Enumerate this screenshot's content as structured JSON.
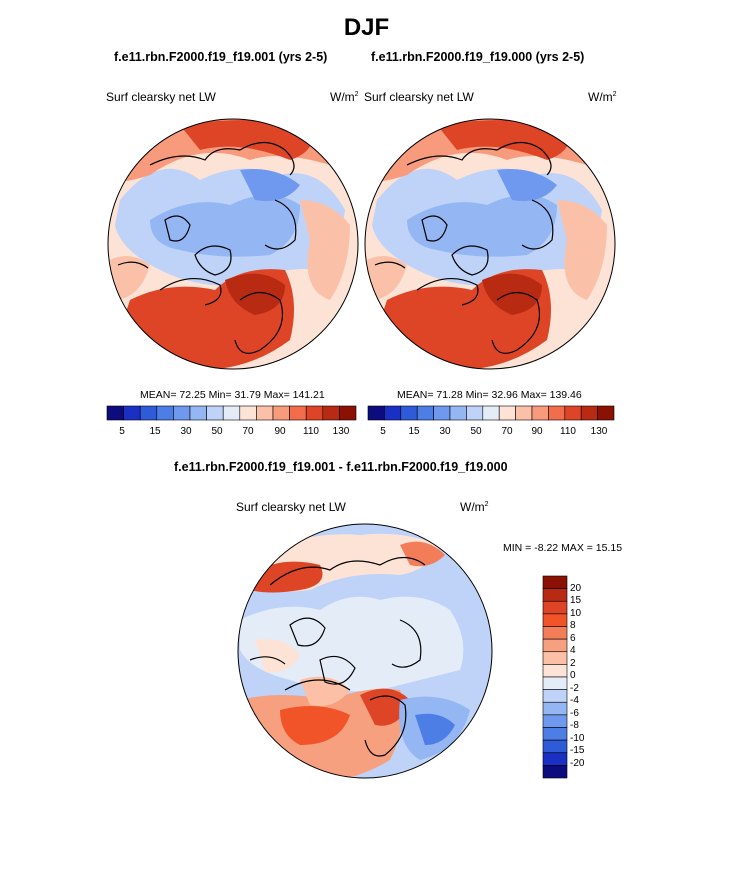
{
  "figure": {
    "season": "DJF",
    "units_base": "W/m",
    "units_exp": "2"
  },
  "panels": [
    {
      "title": "f.e11.rbn.F2000.f19_f19.001 (yrs 2-5)",
      "variable": "Surf clearsky net LW",
      "stats": "MEAN=  72.25   Min=  31.79   Max= 141.21"
    },
    {
      "title": "f.e11.rbn.F2000.f19_f19.000 (yrs 2-5)",
      "variable": "Surf clearsky net LW",
      "stats": "MEAN=  71.28   Min=  32.96   Max= 139.46"
    }
  ],
  "diff_panel": {
    "title": "f.e11.rbn.F2000.f19_f19.001 - f.e11.rbn.F2000.f19_f19.000",
    "variable": "Surf clearsky net LW",
    "stats": "MIN =  -8.22  MAX =  15.15"
  },
  "chart_data": [
    {
      "type": "heatmap",
      "projection": "north polar stereographic",
      "title": "f.e11.rbn.F2000.f19_f19.001 (yrs 2-5)",
      "variable": "Surf clearsky net LW",
      "units": "W/m2",
      "mean": 72.25,
      "min": 31.79,
      "max": 141.21,
      "colorbar_levels": [
        5,
        10,
        15,
        20,
        30,
        40,
        50,
        60,
        70,
        80,
        90,
        100,
        110,
        120,
        130
      ],
      "colorbar_labels": [
        "5",
        "15",
        "30",
        "50",
        "70",
        "90",
        "110",
        "130"
      ]
    },
    {
      "type": "heatmap",
      "projection": "north polar stereographic",
      "title": "f.e11.rbn.F2000.f19_f19.000 (yrs 2-5)",
      "variable": "Surf clearsky net LW",
      "units": "W/m2",
      "mean": 71.28,
      "min": 32.96,
      "max": 139.46,
      "colorbar_levels": [
        5,
        10,
        15,
        20,
        30,
        40,
        50,
        60,
        70,
        80,
        90,
        100,
        110,
        120,
        130
      ],
      "colorbar_labels": [
        "5",
        "15",
        "30",
        "50",
        "70",
        "90",
        "110",
        "130"
      ]
    },
    {
      "type": "heatmap",
      "projection": "north polar stereographic",
      "title": "f.e11.rbn.F2000.f19_f19.001 - f.e11.rbn.F2000.f19_f19.000",
      "variable": "Surf clearsky net LW",
      "units": "W/m2",
      "min": -8.22,
      "max": 15.15,
      "colorbar_labels": [
        "20",
        "15",
        "10",
        "8",
        "6",
        "4",
        "2",
        "0",
        "-2",
        "-4",
        "-6",
        "-8",
        "-10",
        "-15",
        "-20"
      ]
    }
  ],
  "colors": {
    "abs_scale": [
      "#0d0c7e",
      "#1a2fc4",
      "#2f5bd8",
      "#4d7ee6",
      "#6f99ee",
      "#94b6f3",
      "#bed3f7",
      "#e4ecf8",
      "#fde3d6",
      "#fbc1a8",
      "#f89b7c",
      "#f26d4c",
      "#dd4526",
      "#b82a12",
      "#8b1104"
    ],
    "diff_scale": [
      "#8b1104",
      "#b82a12",
      "#dd4526",
      "#f2542a",
      "#f47d59",
      "#f7a07f",
      "#fbc0a6",
      "#fde3d6",
      "#e4ecf8",
      "#bed3f7",
      "#94b6f3",
      "#6f99ee",
      "#4d7ee6",
      "#2f5bd8",
      "#1a2fc4",
      "#0d0c7e"
    ]
  }
}
